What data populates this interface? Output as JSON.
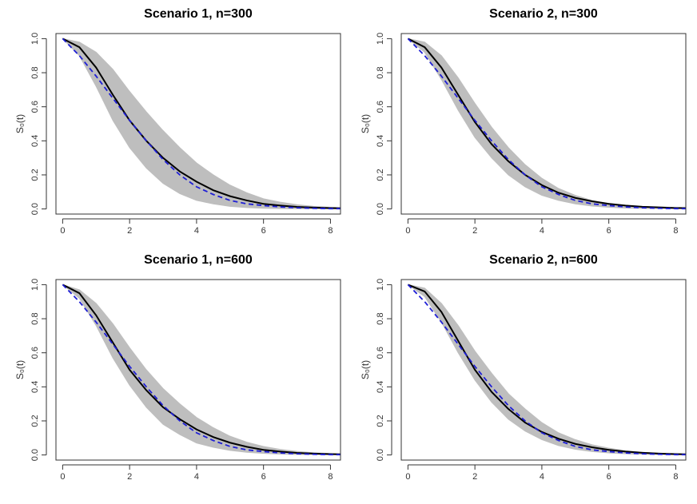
{
  "chart_data": [
    {
      "type": "line",
      "title": "Scenario 1, n=300",
      "ylabel": "S₀(t)",
      "x": [
        0,
        0.5,
        1,
        1.5,
        2,
        2.5,
        3,
        3.5,
        4,
        4.5,
        5,
        5.5,
        6,
        6.5,
        7,
        7.5,
        8,
        8.3
      ],
      "band": {
        "color": "#bebebe",
        "lower": [
          1,
          0.9,
          0.72,
          0.52,
          0.36,
          0.24,
          0.15,
          0.09,
          0.05,
          0.03,
          0.015,
          0.008,
          0.004,
          0.002,
          0.001,
          0.001,
          0,
          0
        ],
        "upper": [
          1,
          0.98,
          0.92,
          0.82,
          0.69,
          0.57,
          0.46,
          0.36,
          0.27,
          0.2,
          0.14,
          0.095,
          0.06,
          0.04,
          0.025,
          0.015,
          0.01,
          0.008
        ]
      },
      "series": [
        {
          "color": "#000000",
          "values": [
            1,
            0.95,
            0.83,
            0.67,
            0.52,
            0.4,
            0.3,
            0.22,
            0.16,
            0.11,
            0.075,
            0.05,
            0.03,
            0.02,
            0.012,
            0.008,
            0.005,
            0.004
          ]
        },
        {
          "color": "#1f1fd6",
          "dash": true,
          "values": [
            1,
            0.9,
            0.78,
            0.65,
            0.52,
            0.4,
            0.29,
            0.2,
            0.13,
            0.085,
            0.05,
            0.03,
            0.02,
            0.012,
            0.007,
            0.004,
            0.002,
            0.002
          ]
        }
      ],
      "xlim": [
        -0.2,
        8.3
      ],
      "xticks": [
        0,
        2,
        4,
        6,
        8
      ],
      "ylim": [
        -0.03,
        1.03
      ],
      "yticks": [
        {
          "value": 0,
          "label": "0.0"
        },
        0.2,
        0.4,
        0.6,
        0.8,
        {
          "value": 1,
          "label": "1.0"
        }
      ]
    },
    {
      "type": "line",
      "title": "Scenario 2, n=300",
      "ylabel": "S₀(t)",
      "x": [
        0,
        0.5,
        1,
        1.5,
        2,
        2.5,
        3,
        3.5,
        4,
        4.5,
        5,
        5.5,
        6,
        6.5,
        7,
        7.5,
        8,
        8.3
      ],
      "band": {
        "color": "#bebebe",
        "lower": [
          1,
          0.92,
          0.76,
          0.58,
          0.42,
          0.3,
          0.2,
          0.13,
          0.08,
          0.05,
          0.03,
          0.017,
          0.01,
          0.005,
          0.003,
          0.002,
          0.001,
          0.001
        ],
        "upper": [
          1,
          0.98,
          0.9,
          0.77,
          0.62,
          0.48,
          0.36,
          0.26,
          0.18,
          0.12,
          0.08,
          0.05,
          0.032,
          0.02,
          0.012,
          0.008,
          0.005,
          0.004
        ]
      },
      "series": [
        {
          "color": "#000000",
          "values": [
            1,
            0.95,
            0.83,
            0.67,
            0.51,
            0.38,
            0.28,
            0.2,
            0.14,
            0.095,
            0.065,
            0.045,
            0.03,
            0.02,
            0.013,
            0.009,
            0.006,
            0.005
          ]
        },
        {
          "color": "#1f1fd6",
          "dash": true,
          "values": [
            1,
            0.9,
            0.78,
            0.65,
            0.52,
            0.4,
            0.29,
            0.2,
            0.13,
            0.085,
            0.05,
            0.03,
            0.02,
            0.012,
            0.007,
            0.004,
            0.002,
            0.002
          ]
        }
      ],
      "xlim": [
        -0.2,
        8.3
      ],
      "xticks": [
        0,
        2,
        4,
        6,
        8
      ],
      "ylim": [
        -0.03,
        1.03
      ],
      "yticks": [
        {
          "value": 0,
          "label": "0.0"
        },
        0.2,
        0.4,
        0.6,
        0.8,
        {
          "value": 1,
          "label": "1.0"
        }
      ]
    },
    {
      "type": "line",
      "title": "Scenario 1, n=600",
      "ylabel": "S₀(t)",
      "x": [
        0,
        0.5,
        1,
        1.5,
        2,
        2.5,
        3,
        3.5,
        4,
        4.5,
        5,
        5.5,
        6,
        6.5,
        7,
        7.5,
        8,
        8.3
      ],
      "band": {
        "color": "#bebebe",
        "lower": [
          1,
          0.92,
          0.76,
          0.57,
          0.41,
          0.28,
          0.18,
          0.12,
          0.07,
          0.045,
          0.027,
          0.016,
          0.009,
          0.005,
          0.003,
          0.002,
          0.001,
          0.001
        ],
        "upper": [
          1,
          0.97,
          0.89,
          0.77,
          0.63,
          0.5,
          0.39,
          0.3,
          0.22,
          0.16,
          0.11,
          0.075,
          0.05,
          0.033,
          0.021,
          0.013,
          0.008,
          0.006
        ]
      },
      "series": [
        {
          "color": "#000000",
          "values": [
            1,
            0.95,
            0.82,
            0.66,
            0.5,
            0.38,
            0.28,
            0.21,
            0.15,
            0.105,
            0.072,
            0.048,
            0.03,
            0.02,
            0.012,
            0.008,
            0.005,
            0.004
          ]
        },
        {
          "color": "#1f1fd6",
          "dash": true,
          "values": [
            1,
            0.9,
            0.78,
            0.65,
            0.52,
            0.4,
            0.29,
            0.2,
            0.13,
            0.085,
            0.05,
            0.03,
            0.02,
            0.012,
            0.007,
            0.004,
            0.002,
            0.002
          ]
        }
      ],
      "xlim": [
        -0.2,
        8.3
      ],
      "xticks": [
        0,
        2,
        4,
        6,
        8
      ],
      "ylim": [
        -0.03,
        1.03
      ],
      "yticks": [
        {
          "value": 0,
          "label": "0.0"
        },
        0.2,
        0.4,
        0.6,
        0.8,
        {
          "value": 1,
          "label": "1.0"
        }
      ]
    },
    {
      "type": "line",
      "title": "Scenario 2, n=600",
      "ylabel": "S₀(t)",
      "x": [
        0,
        0.5,
        1,
        1.5,
        2,
        2.5,
        3,
        3.5,
        4,
        4.5,
        5,
        5.5,
        6,
        6.5,
        7,
        7.5,
        8,
        8.3
      ],
      "band": {
        "color": "#bebebe",
        "lower": [
          1,
          0.93,
          0.78,
          0.6,
          0.44,
          0.31,
          0.21,
          0.14,
          0.09,
          0.055,
          0.033,
          0.02,
          0.012,
          0.007,
          0.004,
          0.002,
          0.001,
          0.001
        ],
        "upper": [
          1,
          0.98,
          0.89,
          0.76,
          0.61,
          0.48,
          0.36,
          0.27,
          0.19,
          0.13,
          0.09,
          0.06,
          0.04,
          0.025,
          0.016,
          0.01,
          0.006,
          0.005
        ]
      },
      "series": [
        {
          "color": "#000000",
          "values": [
            1,
            0.96,
            0.84,
            0.67,
            0.5,
            0.37,
            0.27,
            0.19,
            0.135,
            0.095,
            0.065,
            0.045,
            0.03,
            0.02,
            0.013,
            0.008,
            0.005,
            0.004
          ]
        },
        {
          "color": "#1f1fd6",
          "dash": true,
          "values": [
            1,
            0.9,
            0.78,
            0.65,
            0.52,
            0.4,
            0.29,
            0.2,
            0.13,
            0.085,
            0.05,
            0.03,
            0.02,
            0.012,
            0.007,
            0.004,
            0.002,
            0.002
          ]
        }
      ],
      "xlim": [
        -0.2,
        8.3
      ],
      "xticks": [
        0,
        2,
        4,
        6,
        8
      ],
      "ylim": [
        -0.03,
        1.03
      ],
      "yticks": [
        {
          "value": 0,
          "label": "0.0"
        },
        0.2,
        0.4,
        0.6,
        0.8,
        {
          "value": 1,
          "label": "1.0"
        }
      ]
    }
  ]
}
